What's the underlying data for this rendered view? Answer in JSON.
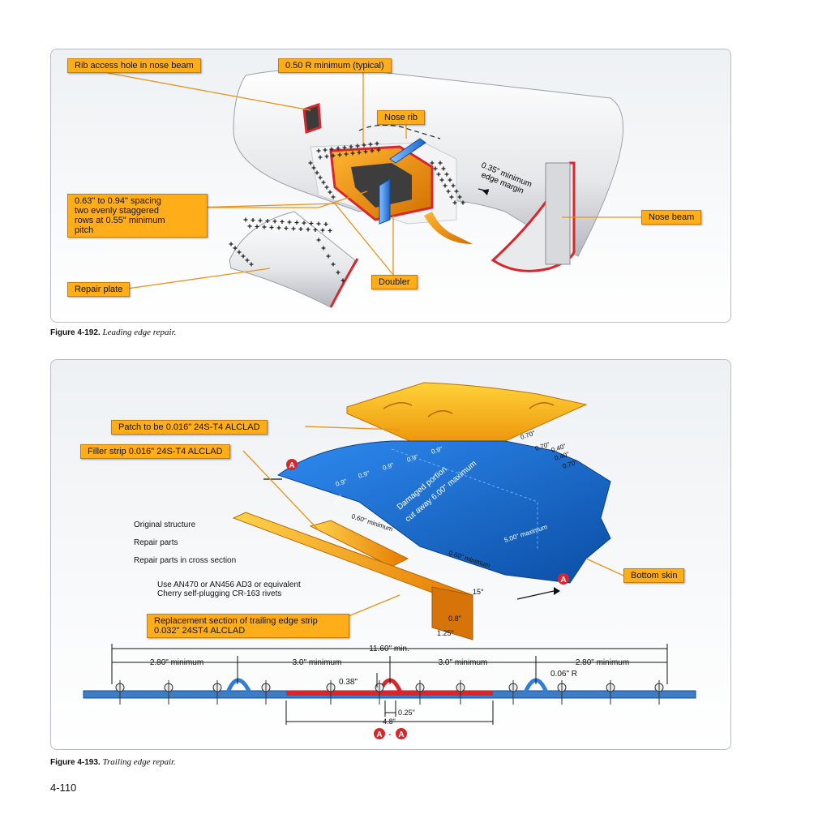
{
  "figure1": {
    "callouts": {
      "rib_access_hole": "Rib access hole in nose beam",
      "radius_min": "0.50 R minimum (typical)",
      "nose_rib": "Nose rib",
      "spacing_note": "0.63\" to 0.94\" spacing\ntwo evenly staggered\nrows at 0.55\" minimum\npitch",
      "nose_beam": "Nose beam",
      "doubler": "Doubler",
      "repair_plate": "Repair plate"
    },
    "edge_margin_line1": "0.35\" minimum",
    "edge_margin_line2": "edge margin",
    "caption_number": "Figure 4-192.",
    "caption_text": "Leading edge repair."
  },
  "figure2": {
    "callouts": {
      "patch": "Patch to be 0.016\" 24S-T4 ALCLAD",
      "filler_strip": "Filler strip 0.016\" 24S-T4 ALCLAD",
      "bottom_skin": "Bottom skin",
      "replacement": "Replacement section of trailing edge strip\n0.032\" 24ST4 ALCLAD"
    },
    "legend": [
      {
        "label": "Original structure",
        "color": "#2f7fd6"
      },
      {
        "label": "Repair parts",
        "color": "#f5b800"
      },
      {
        "label": "Repair parts in cross section",
        "color": "#d8262c"
      }
    ],
    "rivet_note": "Use AN470 or AN456 AD3 or equivalent\nCherry self-plugging CR-163 rivets",
    "section_marker": "A",
    "skin_dims": {
      "d1": "0.9\"",
      "d2": "0.9\"",
      "d3": "0.9\"",
      "d4": "0.9\"",
      "d5": "0.9\"",
      "d6": "0.9\"",
      "r1": "0.70\"",
      "r2": "0.70\"",
      "r3": "0.40\"",
      "r4": "0.40\"",
      "r5": "0.70\"",
      "damaged": "Damaged portion",
      "cutaway": "cut away 6.00\" maximum",
      "five_max": "5.00\" maximum",
      "sixty_min_a": "0.60\" minimum",
      "sixty_min_b": "0.60\" minimum"
    },
    "strip_dims": {
      "angle": "15°",
      "h": "0.8\"",
      "w": "1.25\""
    },
    "section": {
      "overall": "11.60\" min.",
      "left": "2.80\" minimum",
      "center_left": "3.0\" minimum",
      "center_right": "3.0\" minimum",
      "right": "2.80\" minimum",
      "bump_height": "0.38\"",
      "radius": "0.06\" R",
      "bump_width": "0.25\"",
      "repair_width": "4.8\""
    },
    "caption_number": "Figure 4-193.",
    "caption_text": "Trailing edge repair."
  },
  "page_number": "4-110"
}
